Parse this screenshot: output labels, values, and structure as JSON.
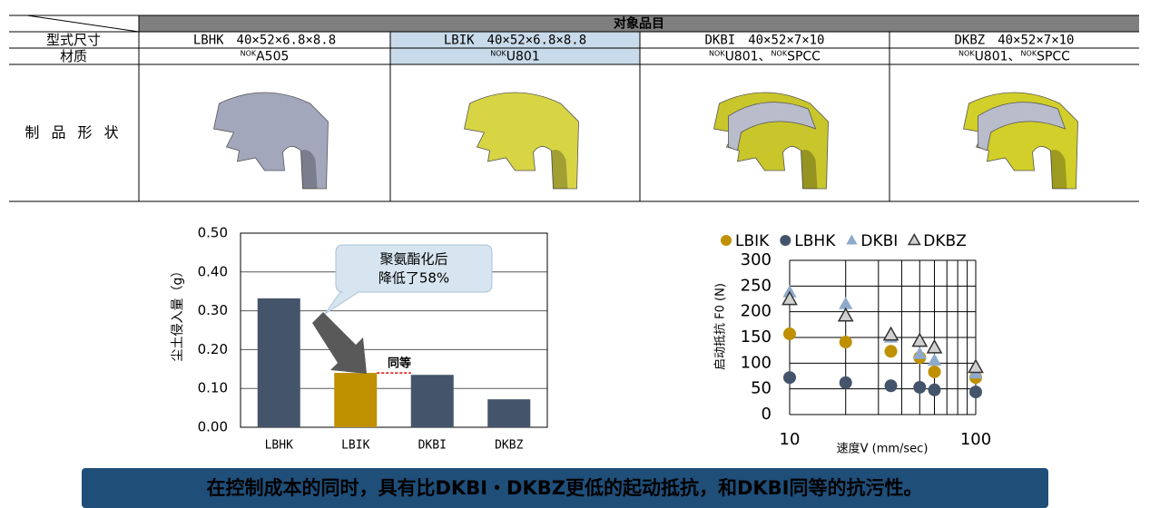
{
  "table": {
    "header": "对象品目",
    "rows": [
      {
        "label": "型式尺寸",
        "cells": [
          "LBHK　40×52×6.8×8.8",
          "LBIK　40×52×6.8×8.8",
          "DKBI　40×52×7×10",
          "DKBZ　40×52×7×10"
        ]
      },
      {
        "label": "材质",
        "cells": [
          [
            {
              "sup": "NOK",
              "text": "A505"
            }
          ],
          [
            {
              "sup": "NOK",
              "text": "U801"
            }
          ],
          [
            {
              "sup": "NOK",
              "text": "U801、"
            },
            {
              "sup": "NOK",
              "text": "SPCC"
            }
          ],
          [
            {
              "sup": "NOK",
              "text": "U801、"
            },
            {
              "sup": "NOK",
              "text": "SPCC"
            }
          ]
        ]
      },
      {
        "label": "制 品 形 状"
      }
    ]
  },
  "chart_data": [
    {
      "type": "bar",
      "ylabel": "尘土侵入量（g）",
      "categories": [
        "LBHK",
        "LBIK",
        "DKBI",
        "DKBZ"
      ],
      "values": [
        0.332,
        0.14,
        0.135,
        0.072
      ],
      "colors": [
        "#44546a",
        "#bf9000",
        "#44546a",
        "#44546a"
      ],
      "ylim": [
        0,
        0.5
      ],
      "yticks": [
        {
          "value": 0,
          "label": "0.00"
        },
        {
          "value": 0.1,
          "label": "0.10"
        },
        {
          "value": 0.2,
          "label": "0.20"
        },
        {
          "value": 0.3,
          "label": "0.30"
        },
        {
          "value": 0.4,
          "label": "0.40"
        },
        {
          "value": 0.5,
          "label": "0.50"
        }
      ],
      "grid": true,
      "callout": [
        "聚氨酯化后",
        "降低了58%"
      ],
      "equal_label": "同等"
    },
    {
      "type": "scatter",
      "xlabel": "速度V (mm/sec)",
      "ylabel": "启动抵抗 F0 (N)",
      "xscale": "log",
      "xlim": [
        10,
        100
      ],
      "xticks": [
        10,
        100
      ],
      "x_minor_grid": [
        20,
        30,
        40,
        50,
        60,
        70,
        80,
        90
      ],
      "ylim": [
        0,
        300
      ],
      "yticks": [
        0,
        50,
        100,
        150,
        200,
        250,
        300
      ],
      "grid": true,
      "x": [
        10,
        20,
        35,
        50,
        60,
        100
      ],
      "series": [
        {
          "name": "LBIK",
          "color": "#bf9000",
          "marker": "circle",
          "values": [
            157,
            141,
            123,
            111,
            83,
            72
          ]
        },
        {
          "name": "LBHK",
          "color": "#44546a",
          "marker": "circle",
          "values": [
            72,
            62,
            56,
            53,
            48,
            44
          ]
        },
        {
          "name": "DKBI",
          "color": "#8eaacb",
          "marker": "triangle",
          "values": [
            238,
            215,
            150,
            118,
            105,
            80
          ]
        },
        {
          "name": "DKBZ",
          "color": "#d0d0d0",
          "marker": "triangle-outline",
          "values": [
            224,
            192,
            155,
            143,
            130,
            92
          ]
        }
      ]
    }
  ],
  "banner": "在控制成本的同时，具有比DKBI・DKBZ更低的起动抵抗，和DKBI同等的抗污性。"
}
